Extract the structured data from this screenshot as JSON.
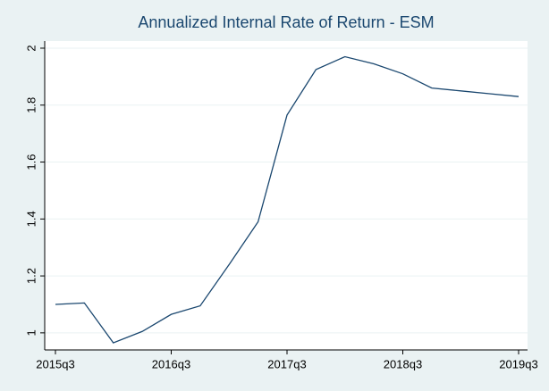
{
  "chart_data": {
    "type": "line",
    "title": "Annualized Internal Rate of Return - ESM",
    "categories": [
      "2015q3",
      null,
      null,
      null,
      "2016q3",
      null,
      null,
      null,
      "2017q3",
      null,
      null,
      null,
      "2018q3",
      null,
      null,
      null,
      "2019q3"
    ],
    "series": [
      {
        "name": null,
        "color": "#1a476f",
        "values": [
          1.1,
          1.105,
          0.965,
          1.005,
          1.065,
          1.095,
          1.24,
          1.39,
          1.765,
          1.925,
          1.97,
          1.945,
          1.91,
          1.86,
          1.85,
          1.84,
          1.83
        ]
      }
    ],
    "ylim": [
      0.94,
      2.025
    ],
    "yticks": [
      1,
      1.2,
      1.4,
      1.6,
      1.8,
      2
    ],
    "grid": true
  }
}
